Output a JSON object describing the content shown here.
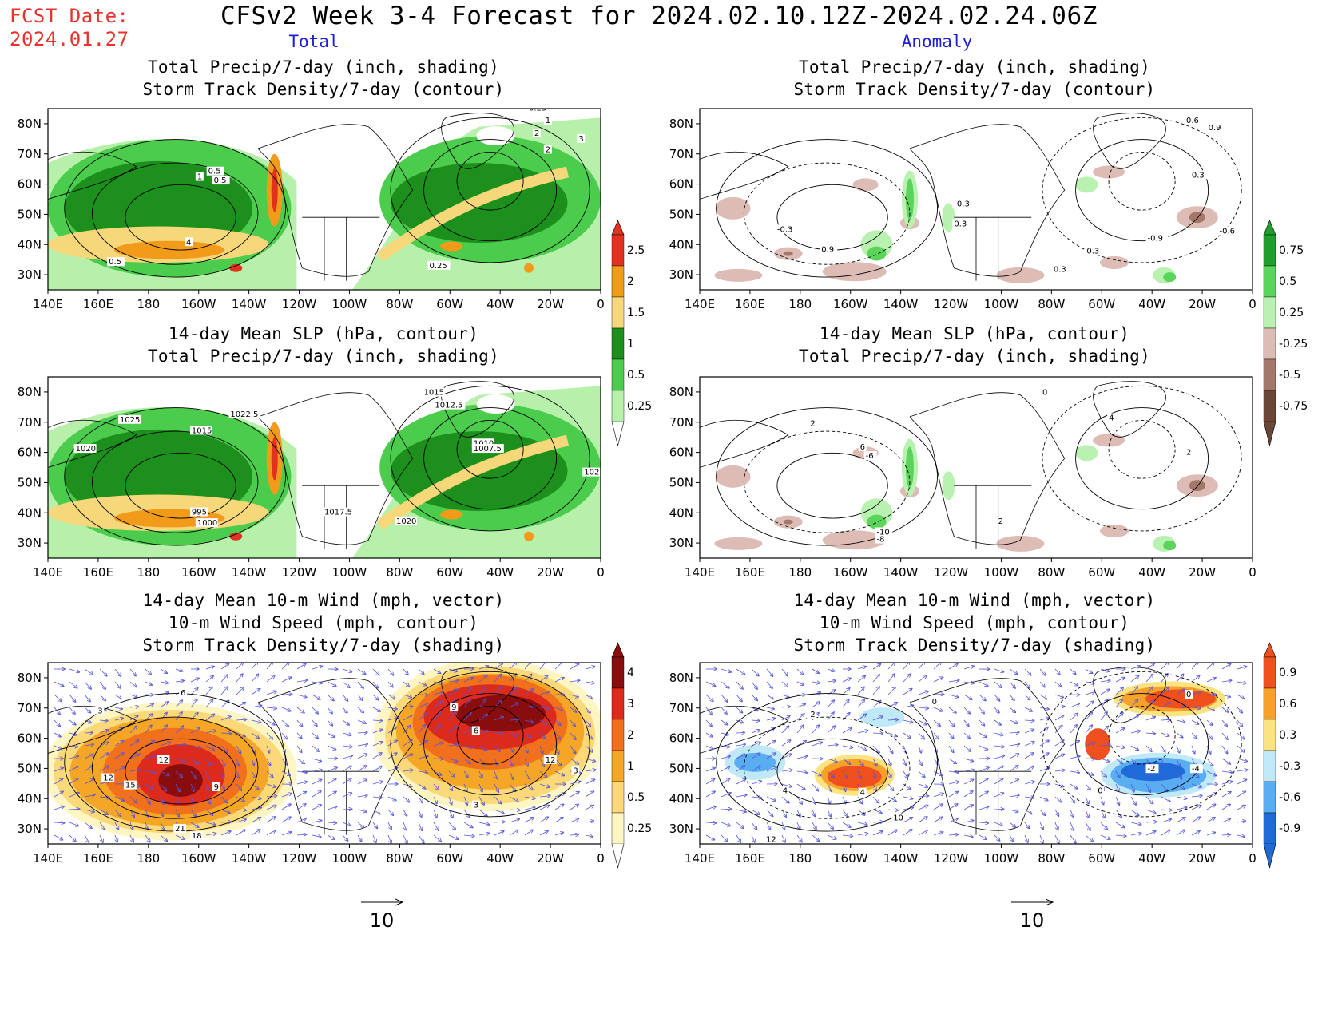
{
  "header": {
    "fcst_date_label": "FCST Date:",
    "fcst_date_value": "2024.01.27",
    "title": "CFSv2 Week 3-4 Forecast for 2024.02.10.12Z-2024.02.24.06Z",
    "col_total": "Total",
    "col_anomaly": "Anomaly"
  },
  "panels": {
    "total_precip": {
      "line1": "Total Precip/7-day (inch, shading)",
      "line2": "Storm Track Density/7-day (contour)"
    },
    "anom_precip": {
      "line1": "Total Precip/7-day (inch, shading)",
      "line2": "Storm Track Density/7-day (contour)"
    },
    "total_slp": {
      "line1": "14-day Mean SLP (hPa, contour)",
      "line2": "Total Precip/7-day (inch, shading)"
    },
    "anom_slp": {
      "line1": "14-day Mean SLP (hPa, contour)",
      "line2": "Total Precip/7-day (inch, shading)"
    },
    "total_wind": {
      "line1": "14-day Mean 10-m Wind (mph, vector)",
      "line2": "10-m Wind Speed (mph, contour)",
      "line3": "Storm Track Density/7-day (shading)"
    },
    "anom_wind": {
      "line1": "14-day Mean 10-m Wind (mph, vector)",
      "line2": "10-m Wind Speed (mph, contour)",
      "line3": "Storm Track Density/7-day (shading)"
    }
  },
  "axes": {
    "lon_labels": [
      "140E",
      "160E",
      "180",
      "160W",
      "140W",
      "120W",
      "100W",
      "80W",
      "60W",
      "40W",
      "20W",
      "0"
    ],
    "lat_labels": [
      "80N",
      "70N",
      "60N",
      "50N",
      "40N",
      "30N"
    ]
  },
  "colorbars": {
    "precip_total": {
      "labels": [
        "2.5",
        "2",
        "1.5",
        "1",
        "0.5",
        "0.25"
      ],
      "colors": [
        "#e0321e",
        "#f29a1a",
        "#f6d77a",
        "#1c8f1c",
        "#4ccc4c",
        "#b6f0aa"
      ]
    },
    "precip_anom": {
      "labels": [
        "0.75",
        "0.5",
        "0.25",
        "-0.25",
        "-0.5",
        "-0.75"
      ],
      "colors": [
        "#1f9e2d",
        "#5bd45b",
        "#b9f2b0",
        "#dcbcb4",
        "#a3786a",
        "#6b4535"
      ]
    },
    "storm_total": {
      "labels": [
        "4",
        "3",
        "2",
        "1",
        "0.5",
        "0.25"
      ],
      "colors": [
        "#8a0d0d",
        "#dc2a1c",
        "#f0701c",
        "#f6a626",
        "#fbd878",
        "#fdf6c2"
      ]
    },
    "storm_anom": {
      "labels": [
        "0.9",
        "0.6",
        "0.3",
        "-0.3",
        "-0.6",
        "-0.9"
      ],
      "colors": [
        "#f0501e",
        "#f6a22a",
        "#fbe282",
        "#bfe8f8",
        "#58aef0",
        "#1e6ad6"
      ]
    }
  },
  "vector_reference": {
    "label": "10"
  },
  "contour_labels": {
    "total_precip": [
      "0.25",
      "1",
      "2",
      "3",
      "0.5",
      "0.5",
      "1",
      "2",
      "4",
      "0.5",
      "0.25"
    ],
    "anom_precip": [
      "0.6",
      "0.9",
      "0.3",
      "-0.3",
      "0.3",
      "-0.3",
      "0.9",
      "-0.9",
      "-0.6",
      "0.3",
      "0.3"
    ],
    "total_slp": [
      "1015",
      "1012.5",
      "1025",
      "1022.5",
      "1020",
      "1015",
      "1010",
      "1007.5",
      "1017.5",
      "1020",
      "995",
      "1000",
      "102"
    ],
    "anom_slp": [
      "0",
      "2",
      "4",
      "6",
      "-6",
      "2",
      "-10",
      "-8",
      "2"
    ],
    "total_wind": [
      "6",
      "3",
      "9",
      "6",
      "12",
      "12",
      "15",
      "9",
      "12",
      "21",
      "18",
      "3",
      "3"
    ],
    "anom_wind": [
      "0",
      "2",
      "0",
      "-2",
      "-4",
      "4",
      "4",
      "10",
      "12",
      "0"
    ]
  }
}
